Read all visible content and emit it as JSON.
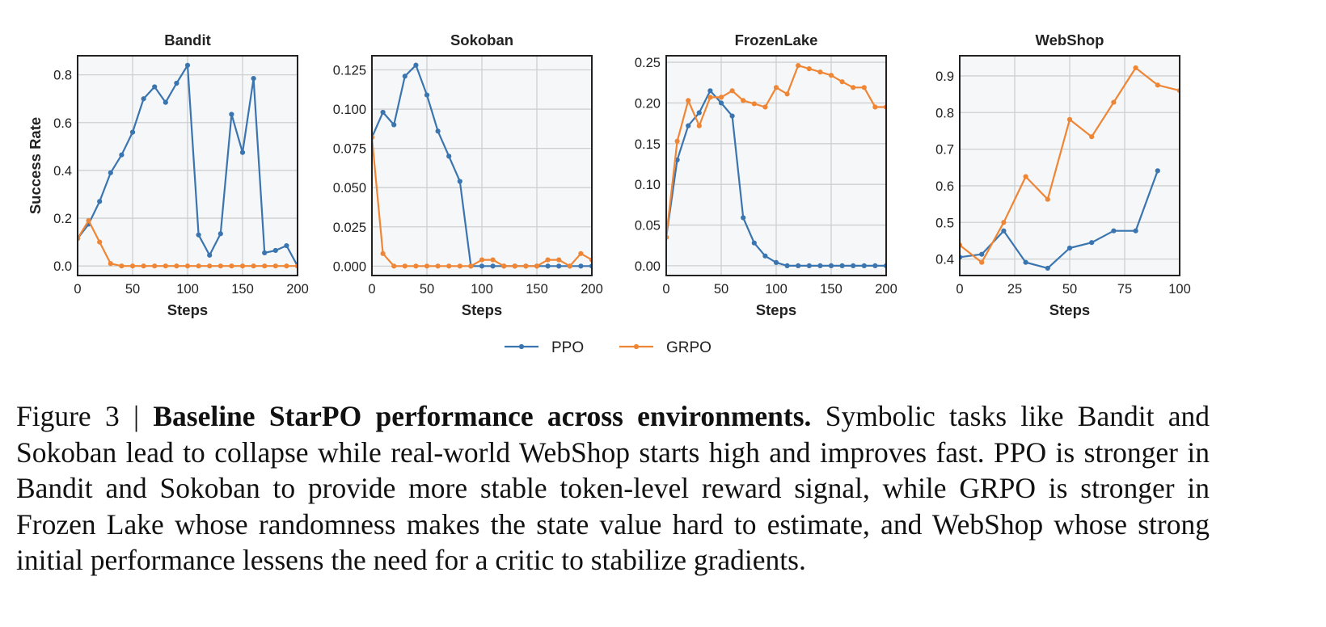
{
  "legend": {
    "position": "bottom-center",
    "series": [
      "PPO",
      "GRPO"
    ]
  },
  "colors": {
    "PPO": "#3b75af",
    "GRPO": "#ef8636",
    "panel_bg": "#f5f7f9",
    "grid": "#cfcfcf",
    "axis": "#222222"
  },
  "chart_data": [
    {
      "type": "line",
      "title": "Bandit",
      "xlabel": "Steps",
      "ylabel": "Success Rate",
      "xlim": [
        0,
        200
      ],
      "ylim": [
        -0.04,
        0.88
      ],
      "xticks": [
        0,
        50,
        100,
        150,
        200
      ],
      "xtick_labels": [
        "0",
        "50",
        "100",
        "150",
        "200"
      ],
      "yticks": [
        0.0,
        0.2,
        0.4,
        0.6,
        0.8
      ],
      "ytick_labels": [
        "0.0",
        "0.2",
        "0.4",
        "0.6",
        "0.8"
      ],
      "grid": true,
      "series": [
        {
          "name": "PPO",
          "x": [
            0,
            10,
            20,
            30,
            40,
            50,
            60,
            70,
            80,
            90,
            100,
            110,
            120,
            130,
            140,
            150,
            160,
            170,
            180,
            190,
            200
          ],
          "y": [
            0.115,
            0.175,
            0.27,
            0.39,
            0.465,
            0.56,
            0.7,
            0.75,
            0.685,
            0.765,
            0.84,
            0.13,
            0.045,
            0.135,
            0.635,
            0.475,
            0.785,
            0.055,
            0.065,
            0.085,
            0.0
          ]
        },
        {
          "name": "GRPO",
          "x": [
            0,
            10,
            20,
            30,
            40,
            50,
            60,
            70,
            80,
            90,
            100,
            110,
            120,
            130,
            140,
            150,
            160,
            170,
            180,
            190,
            200
          ],
          "y": [
            0.115,
            0.19,
            0.1,
            0.01,
            0.0,
            0.0,
            0.0,
            0.0,
            0.0,
            0.0,
            0.0,
            0.0,
            0.0,
            0.0,
            0.0,
            0.0,
            0.0,
            0.0,
            0.0,
            0.0,
            0.0
          ]
        }
      ]
    },
    {
      "type": "line",
      "title": "Sokoban",
      "xlabel": "Steps",
      "ylabel": "",
      "xlim": [
        0,
        200
      ],
      "ylim": [
        -0.006,
        0.134
      ],
      "xticks": [
        0,
        50,
        100,
        150,
        200
      ],
      "xtick_labels": [
        "0",
        "50",
        "100",
        "150",
        "200"
      ],
      "yticks": [
        0.0,
        0.025,
        0.05,
        0.075,
        0.1,
        0.125
      ],
      "ytick_labels": [
        "0.000",
        "0.025",
        "0.050",
        "0.075",
        "0.100",
        "0.125"
      ],
      "grid": true,
      "series": [
        {
          "name": "PPO",
          "x": [
            0,
            10,
            20,
            30,
            40,
            50,
            60,
            70,
            80,
            90,
            100,
            110,
            120,
            130,
            140,
            150,
            160,
            170,
            180,
            190,
            200
          ],
          "y": [
            0.082,
            0.098,
            0.09,
            0.121,
            0.128,
            0.109,
            0.086,
            0.07,
            0.054,
            0.0,
            0.0,
            0.0,
            0.0,
            0.0,
            0.0,
            0.0,
            0.0,
            0.0,
            0.0,
            0.0,
            0.0
          ]
        },
        {
          "name": "GRPO",
          "x": [
            0,
            10,
            20,
            30,
            40,
            50,
            60,
            70,
            80,
            90,
            100,
            110,
            120,
            130,
            140,
            150,
            160,
            170,
            180,
            190,
            200
          ],
          "y": [
            0.082,
            0.008,
            0.0,
            0.0,
            0.0,
            0.0,
            0.0,
            0.0,
            0.0,
            0.0,
            0.004,
            0.004,
            0.0,
            0.0,
            0.0,
            0.0,
            0.004,
            0.004,
            0.0,
            0.008,
            0.004
          ]
        }
      ]
    },
    {
      "type": "line",
      "title": "FrozenLake",
      "xlabel": "Steps",
      "ylabel": "",
      "xlim": [
        0,
        200
      ],
      "ylim": [
        -0.012,
        0.258
      ],
      "xticks": [
        0,
        50,
        100,
        150,
        200
      ],
      "xtick_labels": [
        "0",
        "50",
        "100",
        "150",
        "200"
      ],
      "yticks": [
        0.0,
        0.05,
        0.1,
        0.15,
        0.2,
        0.25
      ],
      "ytick_labels": [
        "0.00",
        "0.05",
        "0.10",
        "0.15",
        "0.20",
        "0.25"
      ],
      "grid": true,
      "series": [
        {
          "name": "PPO",
          "x": [
            0,
            10,
            20,
            30,
            40,
            50,
            60,
            70,
            80,
            90,
            100,
            110,
            120,
            130,
            140,
            150,
            160,
            170,
            180,
            190,
            200
          ],
          "y": [
            0.035,
            0.13,
            0.172,
            0.188,
            0.215,
            0.2,
            0.184,
            0.059,
            0.028,
            0.012,
            0.004,
            0.0,
            0.0,
            0.0,
            0.0,
            0.0,
            0.0,
            0.0,
            0.0,
            0.0,
            0.0
          ]
        },
        {
          "name": "GRPO",
          "x": [
            0,
            10,
            20,
            30,
            40,
            50,
            60,
            70,
            80,
            90,
            100,
            110,
            120,
            130,
            140,
            150,
            160,
            170,
            180,
            190,
            200
          ],
          "y": [
            0.035,
            0.153,
            0.203,
            0.172,
            0.207,
            0.207,
            0.215,
            0.203,
            0.199,
            0.195,
            0.219,
            0.211,
            0.246,
            0.242,
            0.238,
            0.234,
            0.226,
            0.219,
            0.219,
            0.195,
            0.195
          ]
        }
      ]
    },
    {
      "type": "line",
      "title": "WebShop",
      "xlabel": "Steps",
      "ylabel": "",
      "xlim": [
        0,
        100
      ],
      "ylim": [
        0.355,
        0.955
      ],
      "xticks": [
        0,
        25,
        50,
        75,
        100
      ],
      "xtick_labels": [
        "0",
        "25",
        "50",
        "75",
        "100"
      ],
      "yticks": [
        0.4,
        0.5,
        0.6,
        0.7,
        0.8,
        0.9
      ],
      "ytick_labels": [
        "0.4",
        "0.5",
        "0.6",
        "0.7",
        "0.8",
        "0.9"
      ],
      "grid": true,
      "series": [
        {
          "name": "PPO",
          "x": [
            0,
            10,
            20,
            30,
            40,
            50,
            60,
            70,
            80,
            90
          ],
          "y": [
            0.405,
            0.413,
            0.477,
            0.391,
            0.375,
            0.43,
            0.445,
            0.477,
            0.477,
            0.641
          ]
        },
        {
          "name": "GRPO",
          "x": [
            0,
            10,
            20,
            30,
            40,
            50,
            60,
            70,
            80,
            90,
            100
          ],
          "y": [
            0.438,
            0.391,
            0.5,
            0.625,
            0.563,
            0.781,
            0.734,
            0.828,
            0.922,
            0.875,
            0.86
          ]
        }
      ]
    }
  ],
  "caption": {
    "label": "Figure 3 | ",
    "bold": "Baseline StarPO performance across environments.",
    "text": " Symbolic tasks like Bandit and Sokoban lead to collapse while real-world WebShop starts high and improves fast.  PPO is stronger in Bandit and Sokoban to provide more stable token-level reward signal, while GRPO is stronger in Frozen Lake whose randomness makes the state value hard to estimate, and WebShop whose strong initial performance lessens the need for a critic to stabilize gradients."
  }
}
